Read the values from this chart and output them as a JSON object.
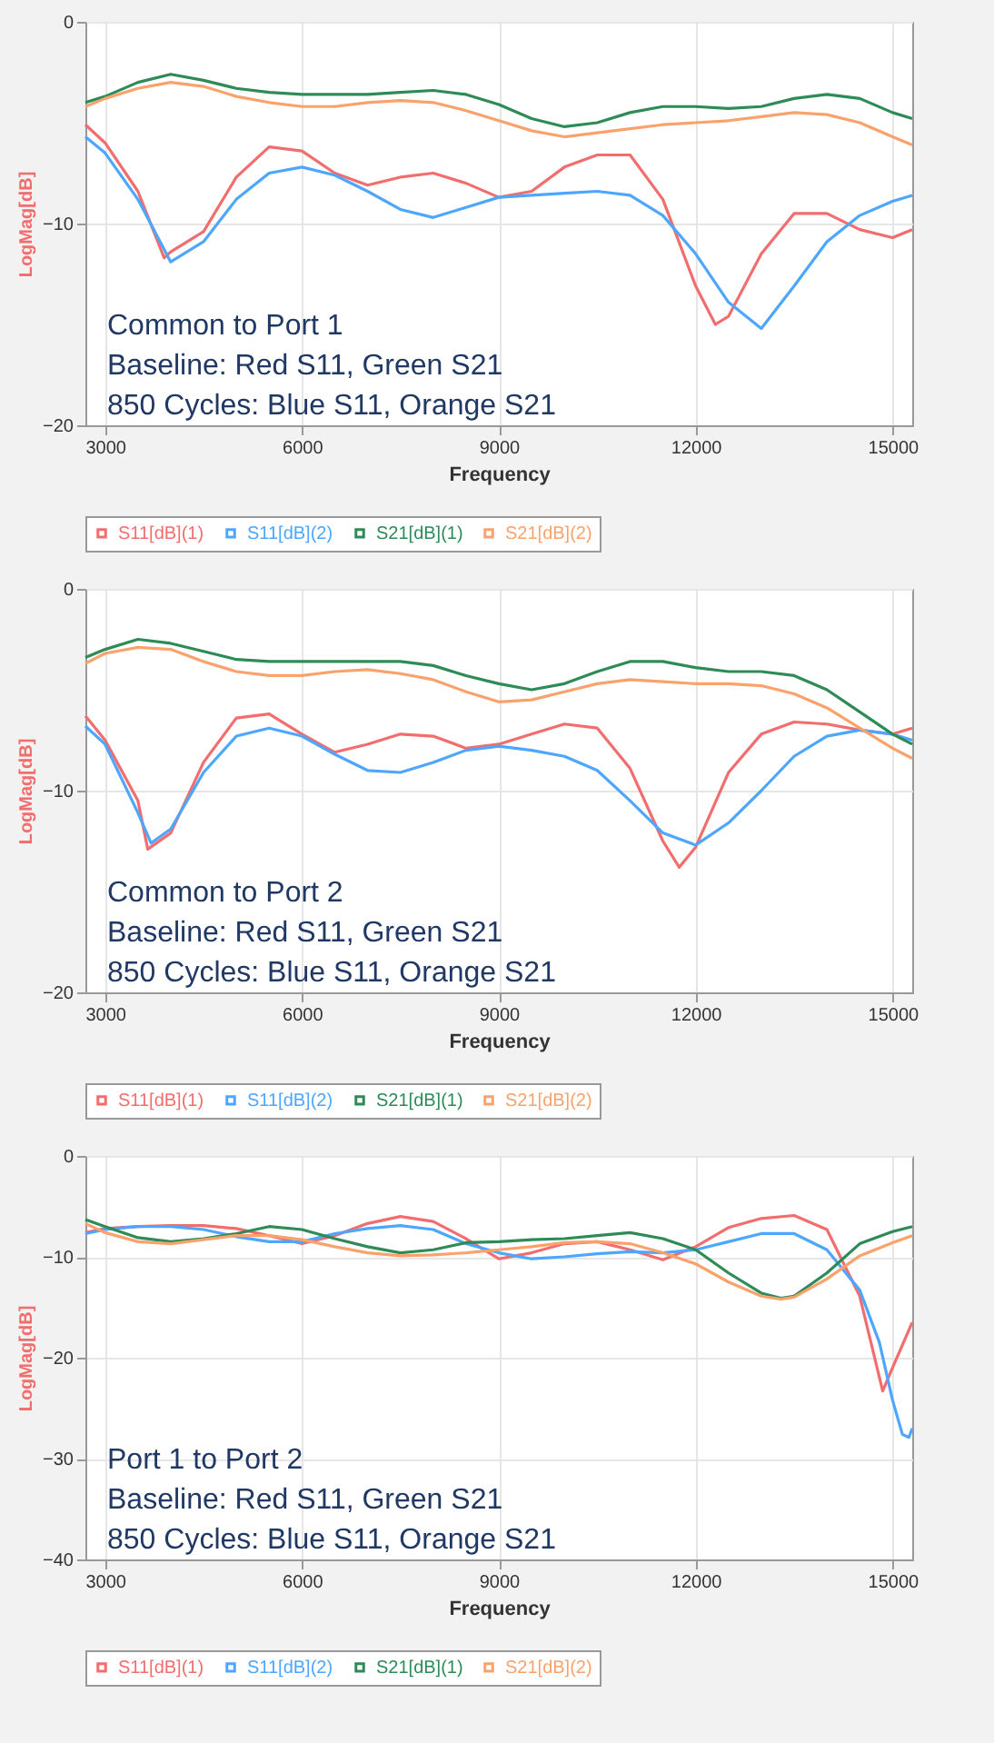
{
  "chart_data": [
    {
      "type": "line",
      "xlabel": "Frequency",
      "ylabel": "LogMag[dB]",
      "xlim": [
        2700,
        15300
      ],
      "ylim": [
        -20,
        0
      ],
      "xticks": [
        3000,
        6000,
        9000,
        12000,
        15000
      ],
      "yticks": [
        0,
        -10,
        -20
      ],
      "grid": true,
      "legend": "bottom",
      "annotations": [
        "Common to Port 1",
        "Baseline:  Red S11, Green S21",
        "850 Cycles: Blue S11, Orange S21"
      ],
      "series": [
        {
          "name": "S11[dB](1)",
          "color": "#f26d6d",
          "x": [
            2700,
            3000,
            3500,
            3900,
            4000,
            4500,
            5000,
            5500,
            6000,
            6500,
            7000,
            7500,
            8000,
            8500,
            9000,
            9500,
            10000,
            10500,
            11000,
            11500,
            12000,
            12300,
            12500,
            13000,
            13500,
            14000,
            14500,
            15000,
            15300
          ],
          "values": [
            -5.1,
            -6.0,
            -8.4,
            -11.7,
            -11.4,
            -10.4,
            -7.7,
            -6.2,
            -6.4,
            -7.5,
            -8.1,
            -7.7,
            -7.5,
            -8.0,
            -8.7,
            -8.4,
            -7.2,
            -6.6,
            -6.6,
            -8.8,
            -13.1,
            -15.0,
            -14.6,
            -11.5,
            -9.5,
            -9.5,
            -10.3,
            -10.7,
            -10.3
          ]
        },
        {
          "name": "S11[dB](2)",
          "color": "#4da6ff",
          "x": [
            2700,
            3000,
            3500,
            4000,
            4500,
            5000,
            5500,
            6000,
            6500,
            7000,
            7500,
            8000,
            8500,
            9000,
            9500,
            10000,
            10500,
            11000,
            11500,
            12000,
            12500,
            13000,
            13500,
            14000,
            14500,
            15000,
            15300
          ],
          "values": [
            -5.7,
            -6.5,
            -8.8,
            -11.9,
            -10.9,
            -8.8,
            -7.5,
            -7.2,
            -7.6,
            -8.4,
            -9.3,
            -9.7,
            -9.2,
            -8.7,
            -8.6,
            -8.5,
            -8.4,
            -8.6,
            -9.6,
            -11.5,
            -13.9,
            -15.2,
            -13.1,
            -10.9,
            -9.6,
            -8.9,
            -8.6
          ]
        },
        {
          "name": "S21[dB](1)",
          "color": "#2e8b57",
          "x": [
            2700,
            3000,
            3500,
            4000,
            4500,
            5000,
            5500,
            6000,
            6500,
            7000,
            7500,
            8000,
            8500,
            9000,
            9500,
            10000,
            10500,
            11000,
            11500,
            12000,
            12500,
            13000,
            13500,
            14000,
            14500,
            15000,
            15300
          ],
          "values": [
            -4.0,
            -3.7,
            -3.0,
            -2.6,
            -2.9,
            -3.3,
            -3.5,
            -3.6,
            -3.6,
            -3.6,
            -3.5,
            -3.4,
            -3.6,
            -4.1,
            -4.8,
            -5.2,
            -5.0,
            -4.5,
            -4.2,
            -4.2,
            -4.3,
            -4.2,
            -3.8,
            -3.6,
            -3.8,
            -4.5,
            -4.8
          ]
        },
        {
          "name": "S21[dB](2)",
          "color": "#f9a26c",
          "x": [
            2700,
            3000,
            3500,
            4000,
            4500,
            5000,
            5500,
            6000,
            6500,
            7000,
            7500,
            8000,
            8500,
            9000,
            9500,
            10000,
            10500,
            11000,
            11500,
            12000,
            12500,
            13000,
            13500,
            14000,
            14500,
            15000,
            15300
          ],
          "values": [
            -4.2,
            -3.8,
            -3.3,
            -3.0,
            -3.2,
            -3.7,
            -4.0,
            -4.2,
            -4.2,
            -4.0,
            -3.9,
            -4.0,
            -4.4,
            -4.9,
            -5.4,
            -5.7,
            -5.5,
            -5.3,
            -5.1,
            -5.0,
            -4.9,
            -4.7,
            -4.5,
            -4.6,
            -5.0,
            -5.7,
            -6.1
          ]
        }
      ]
    },
    {
      "type": "line",
      "xlabel": "Frequency",
      "ylabel": "LogMag[dB]",
      "xlim": [
        2700,
        15300
      ],
      "ylim": [
        -20,
        0
      ],
      "xticks": [
        3000,
        6000,
        9000,
        12000,
        15000
      ],
      "yticks": [
        0,
        -10,
        -20
      ],
      "grid": true,
      "legend": "bottom",
      "annotations": [
        "Common to Port 2",
        "Baseline:  Red S11, Green S21",
        "850 Cycles: Blue S11, Orange S21"
      ],
      "series": [
        {
          "name": "S11[dB](1)",
          "color": "#f26d6d",
          "x": [
            2700,
            3000,
            3500,
            3650,
            4000,
            4500,
            5000,
            5500,
            6000,
            6500,
            7000,
            7500,
            8000,
            8500,
            9000,
            9500,
            10000,
            10500,
            11000,
            11500,
            11750,
            12000,
            12500,
            13000,
            13500,
            14000,
            14500,
            15000,
            15300
          ],
          "values": [
            -6.3,
            -7.5,
            -10.5,
            -12.9,
            -12.1,
            -8.6,
            -6.4,
            -6.2,
            -7.2,
            -8.1,
            -7.7,
            -7.2,
            -7.3,
            -7.9,
            -7.7,
            -7.2,
            -6.7,
            -6.9,
            -8.9,
            -12.5,
            -13.8,
            -12.8,
            -9.1,
            -7.2,
            -6.6,
            -6.7,
            -7.0,
            -7.2,
            -6.9
          ]
        },
        {
          "name": "S11[dB](2)",
          "color": "#4da6ff",
          "x": [
            2700,
            3000,
            3500,
            3700,
            4000,
            4500,
            5000,
            5500,
            6000,
            6500,
            7000,
            7500,
            8000,
            8500,
            9000,
            9500,
            10000,
            10500,
            11000,
            11500,
            12000,
            12500,
            13000,
            13500,
            14000,
            14500,
            15000,
            15300
          ],
          "values": [
            -6.8,
            -7.7,
            -11.1,
            -12.6,
            -11.9,
            -9.1,
            -7.3,
            -6.9,
            -7.3,
            -8.2,
            -9.0,
            -9.1,
            -8.6,
            -8.0,
            -7.8,
            -8.0,
            -8.3,
            -9.0,
            -10.5,
            -12.1,
            -12.7,
            -11.6,
            -10.0,
            -8.3,
            -7.3,
            -7.0,
            -7.2,
            -7.5
          ]
        },
        {
          "name": "S21[dB](1)",
          "color": "#2e8b57",
          "x": [
            2700,
            3000,
            3500,
            4000,
            4500,
            5000,
            5500,
            6000,
            6500,
            7000,
            7500,
            8000,
            8500,
            9000,
            9500,
            10000,
            10500,
            11000,
            11500,
            12000,
            12500,
            13000,
            13500,
            14000,
            14500,
            15000,
            15300
          ],
          "values": [
            -3.4,
            -3.0,
            -2.5,
            -2.7,
            -3.1,
            -3.5,
            -3.6,
            -3.6,
            -3.6,
            -3.6,
            -3.6,
            -3.8,
            -4.3,
            -4.7,
            -5.0,
            -4.7,
            -4.1,
            -3.6,
            -3.6,
            -3.9,
            -4.1,
            -4.1,
            -4.3,
            -5.0,
            -6.1,
            -7.2,
            -7.7
          ]
        },
        {
          "name": "S21[dB](2)",
          "color": "#f9a26c",
          "x": [
            2700,
            3000,
            3500,
            4000,
            4500,
            5000,
            5500,
            6000,
            6500,
            7000,
            7500,
            8000,
            8500,
            9000,
            9500,
            10000,
            10500,
            11000,
            11500,
            12000,
            12500,
            13000,
            13500,
            14000,
            14500,
            15000,
            15300
          ],
          "values": [
            -3.7,
            -3.2,
            -2.9,
            -3.0,
            -3.6,
            -4.1,
            -4.3,
            -4.3,
            -4.1,
            -4.0,
            -4.2,
            -4.5,
            -5.1,
            -5.6,
            -5.5,
            -5.1,
            -4.7,
            -4.5,
            -4.6,
            -4.7,
            -4.7,
            -4.8,
            -5.2,
            -5.9,
            -6.9,
            -7.9,
            -8.4
          ]
        }
      ]
    },
    {
      "type": "line",
      "xlabel": "Frequency",
      "ylabel": "LogMag[dB]",
      "xlim": [
        2700,
        15300
      ],
      "ylim": [
        -40,
        0
      ],
      "xticks": [
        3000,
        6000,
        9000,
        12000,
        15000
      ],
      "yticks": [
        0,
        -10,
        -20,
        -30,
        -40
      ],
      "grid": true,
      "legend": "bottom",
      "annotations": [
        "Port 1 to Port 2",
        "Baseline:  Red S11, Green S21",
        "850 Cycles: Blue S11, Orange S21"
      ],
      "series": [
        {
          "name": "S11[dB](1)",
          "color": "#f26d6d",
          "x": [
            2700,
            3000,
            3500,
            4000,
            4500,
            5000,
            5500,
            6000,
            6500,
            7000,
            7500,
            8000,
            8500,
            9000,
            9500,
            10000,
            10500,
            11000,
            11500,
            12000,
            12500,
            13000,
            13500,
            14000,
            14500,
            14850,
            15000,
            15300
          ],
          "values": [
            -7.6,
            -7.2,
            -7.0,
            -6.9,
            -6.9,
            -7.2,
            -7.9,
            -8.7,
            -7.9,
            -6.7,
            -6.0,
            -6.5,
            -8.2,
            -10.2,
            -9.6,
            -8.7,
            -8.5,
            -9.3,
            -10.3,
            -9.0,
            -7.1,
            -6.2,
            -5.9,
            -7.3,
            -13.9,
            -23.3,
            -21.0,
            -16.5
          ]
        },
        {
          "name": "S11[dB](2)",
          "color": "#4da6ff",
          "x": [
            2700,
            3000,
            3500,
            4000,
            4500,
            5000,
            5500,
            6000,
            6500,
            7000,
            7500,
            8000,
            8500,
            9000,
            9500,
            10000,
            10500,
            11000,
            11500,
            12000,
            12500,
            13000,
            13500,
            14000,
            14500,
            14800,
            15000,
            15150,
            15250,
            15300
          ],
          "values": [
            -7.7,
            -7.3,
            -7.0,
            -7.0,
            -7.3,
            -8.0,
            -8.5,
            -8.5,
            -7.7,
            -7.2,
            -6.9,
            -7.3,
            -8.7,
            -9.6,
            -10.2,
            -10.0,
            -9.7,
            -9.5,
            -9.6,
            -9.3,
            -8.5,
            -7.7,
            -7.7,
            -9.3,
            -13.3,
            -18.5,
            -24.2,
            -27.6,
            -27.9,
            -27.0
          ]
        },
        {
          "name": "S21[dB](1)",
          "color": "#2e8b57",
          "x": [
            2700,
            3000,
            3500,
            4000,
            4500,
            5000,
            5500,
            6000,
            6500,
            7000,
            7500,
            8000,
            8500,
            9000,
            9500,
            10000,
            10500,
            11000,
            11500,
            12000,
            12500,
            13000,
            13300,
            13500,
            14000,
            14500,
            15000,
            15300
          ],
          "values": [
            -6.3,
            -7.0,
            -8.1,
            -8.5,
            -8.2,
            -7.7,
            -7.0,
            -7.3,
            -8.2,
            -9.0,
            -9.6,
            -9.3,
            -8.6,
            -8.5,
            -8.3,
            -8.2,
            -7.9,
            -7.6,
            -8.2,
            -9.3,
            -11.6,
            -13.6,
            -14.1,
            -13.9,
            -11.6,
            -8.7,
            -7.5,
            -7.0
          ]
        },
        {
          "name": "S21[dB](2)",
          "color": "#f9a26c",
          "x": [
            2700,
            3000,
            3500,
            4000,
            4500,
            5000,
            5500,
            6000,
            6500,
            7000,
            7500,
            8000,
            8500,
            9000,
            9500,
            10000,
            10500,
            11000,
            11500,
            12000,
            12500,
            13000,
            13300,
            13500,
            14000,
            14500,
            15000,
            15300
          ],
          "values": [
            -6.7,
            -7.6,
            -8.5,
            -8.7,
            -8.3,
            -7.9,
            -7.9,
            -8.3,
            -9.0,
            -9.6,
            -9.9,
            -9.8,
            -9.6,
            -9.3,
            -9.0,
            -8.6,
            -8.5,
            -8.7,
            -9.6,
            -10.7,
            -12.5,
            -13.9,
            -14.2,
            -14.0,
            -12.2,
            -9.9,
            -8.6,
            -7.9
          ]
        }
      ]
    }
  ]
}
